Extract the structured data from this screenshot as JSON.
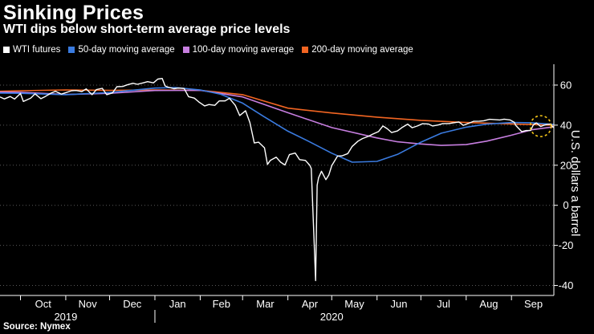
{
  "header": {
    "title": "Sinking Prices",
    "subtitle": "WTI dips below short-term average price levels"
  },
  "footer": {
    "source": "Source: Nymex"
  },
  "colors": {
    "background": "#000000",
    "wti": "#ffffff",
    "ma50": "#3a7be0",
    "ma100": "#c77ee0",
    "ma200": "#f26522",
    "annotation": "#f2c318",
    "grid": "#5a5a5a"
  },
  "chart_data": {
    "type": "line",
    "title": "Sinking Prices",
    "subtitle": "WTI dips below short-term average price levels",
    "ylabel": "U.S. dollars a barrel",
    "ylim": [
      -45,
      68
    ],
    "yticks": [
      60,
      40,
      20,
      0,
      -20,
      -40
    ],
    "ytick_labels": [
      "60",
      "40",
      "20",
      "0",
      "-20",
      "-40"
    ],
    "y_axis_side": "right",
    "grid": "horizontal dotted",
    "legend_position": "top-left",
    "x_range": [
      "2019-09-17",
      "2020-09-30"
    ],
    "month_ticks": [
      {
        "label": "Oct",
        "date": "2019-10-01"
      },
      {
        "label": "Nov",
        "date": "2019-11-01"
      },
      {
        "label": "Dec",
        "date": "2019-12-01"
      },
      {
        "label": "Jan",
        "date": "2020-01-01"
      },
      {
        "label": "Feb",
        "date": "2020-02-01"
      },
      {
        "label": "Mar",
        "date": "2020-03-01"
      },
      {
        "label": "Apr",
        "date": "2020-04-01"
      },
      {
        "label": "May",
        "date": "2020-05-01"
      },
      {
        "label": "Jun",
        "date": "2020-06-01"
      },
      {
        "label": "Jul",
        "date": "2020-07-01"
      },
      {
        "label": "Aug",
        "date": "2020-08-01"
      },
      {
        "label": "Sep",
        "date": "2020-09-01"
      }
    ],
    "year_labels": [
      {
        "label": "2019",
        "date": "2019-11-01"
      },
      {
        "label": "2020",
        "date": "2020-05-01"
      }
    ],
    "series": [
      {
        "name": "WTI futures",
        "color": "#ffffff",
        "points": [
          [
            "2019-09-17",
            54.1
          ],
          [
            "2019-09-20",
            53.1
          ],
          [
            "2019-09-24",
            54.3
          ],
          [
            "2019-09-27",
            53.0
          ],
          [
            "2019-10-01",
            55.8
          ],
          [
            "2019-10-03",
            51.8
          ],
          [
            "2019-10-08",
            53.5
          ],
          [
            "2019-10-11",
            55.6
          ],
          [
            "2019-10-15",
            53.2
          ],
          [
            "2019-10-18",
            54.3
          ],
          [
            "2019-10-22",
            56.0
          ],
          [
            "2019-10-25",
            56.9
          ],
          [
            "2019-10-29",
            55.5
          ],
          [
            "2019-11-01",
            56.2
          ],
          [
            "2019-11-05",
            57.2
          ],
          [
            "2019-11-08",
            57.3
          ],
          [
            "2019-11-12",
            56.8
          ],
          [
            "2019-11-15",
            58.1
          ],
          [
            "2019-11-19",
            55.2
          ],
          [
            "2019-11-22",
            57.8
          ],
          [
            "2019-11-26",
            58.4
          ],
          [
            "2019-11-29",
            55.2
          ],
          [
            "2019-12-03",
            56.1
          ],
          [
            "2019-12-06",
            59.2
          ],
          [
            "2019-12-10",
            59.3
          ],
          [
            "2019-12-13",
            60.1
          ],
          [
            "2019-12-17",
            60.9
          ],
          [
            "2019-12-20",
            60.4
          ],
          [
            "2019-12-24",
            61.1
          ],
          [
            "2019-12-27",
            61.7
          ],
          [
            "2019-12-31",
            61.1
          ],
          [
            "2020-01-03",
            63.0
          ],
          [
            "2020-01-06",
            63.3
          ],
          [
            "2020-01-08",
            59.6
          ],
          [
            "2020-01-10",
            59.0
          ],
          [
            "2020-01-14",
            58.2
          ],
          [
            "2020-01-17",
            58.5
          ],
          [
            "2020-01-21",
            58.3
          ],
          [
            "2020-01-24",
            54.2
          ],
          [
            "2020-01-28",
            53.5
          ],
          [
            "2020-01-31",
            51.6
          ],
          [
            "2020-02-04",
            49.6
          ],
          [
            "2020-02-07",
            50.3
          ],
          [
            "2020-02-11",
            49.9
          ],
          [
            "2020-02-14",
            52.1
          ],
          [
            "2020-02-18",
            52.1
          ],
          [
            "2020-02-21",
            53.4
          ],
          [
            "2020-02-25",
            49.9
          ],
          [
            "2020-02-28",
            44.8
          ],
          [
            "2020-03-03",
            47.2
          ],
          [
            "2020-03-06",
            41.3
          ],
          [
            "2020-03-09",
            31.1
          ],
          [
            "2020-03-12",
            31.5
          ],
          [
            "2020-03-16",
            28.7
          ],
          [
            "2020-03-18",
            20.4
          ],
          [
            "2020-03-20",
            22.4
          ],
          [
            "2020-03-24",
            24.0
          ],
          [
            "2020-03-27",
            21.5
          ],
          [
            "2020-03-30",
            20.1
          ],
          [
            "2020-04-02",
            25.3
          ],
          [
            "2020-04-06",
            26.1
          ],
          [
            "2020-04-09",
            22.8
          ],
          [
            "2020-04-13",
            22.4
          ],
          [
            "2020-04-16",
            19.9
          ],
          [
            "2020-04-17",
            18.3
          ],
          [
            "2020-04-20",
            -37.6
          ],
          [
            "2020-04-21",
            10.0
          ],
          [
            "2020-04-22",
            13.8
          ],
          [
            "2020-04-24",
            17.0
          ],
          [
            "2020-04-27",
            12.8
          ],
          [
            "2020-04-29",
            15.1
          ],
          [
            "2020-05-01",
            19.8
          ],
          [
            "2020-05-05",
            24.6
          ],
          [
            "2020-05-08",
            24.7
          ],
          [
            "2020-05-12",
            25.8
          ],
          [
            "2020-05-15",
            29.4
          ],
          [
            "2020-05-19",
            32.0
          ],
          [
            "2020-05-22",
            33.3
          ],
          [
            "2020-05-26",
            34.4
          ],
          [
            "2020-05-29",
            35.5
          ],
          [
            "2020-06-02",
            36.8
          ],
          [
            "2020-06-05",
            39.6
          ],
          [
            "2020-06-08",
            38.2
          ],
          [
            "2020-06-11",
            36.3
          ],
          [
            "2020-06-15",
            37.1
          ],
          [
            "2020-06-18",
            38.8
          ],
          [
            "2020-06-22",
            40.5
          ],
          [
            "2020-06-25",
            38.7
          ],
          [
            "2020-06-29",
            39.7
          ],
          [
            "2020-07-02",
            40.7
          ],
          [
            "2020-07-06",
            40.6
          ],
          [
            "2020-07-09",
            39.6
          ],
          [
            "2020-07-13",
            40.1
          ],
          [
            "2020-07-16",
            40.8
          ],
          [
            "2020-07-20",
            40.8
          ],
          [
            "2020-07-23",
            41.1
          ],
          [
            "2020-07-27",
            41.6
          ],
          [
            "2020-07-30",
            39.9
          ],
          [
            "2020-08-03",
            41.0
          ],
          [
            "2020-08-06",
            41.9
          ],
          [
            "2020-08-10",
            42.0
          ],
          [
            "2020-08-13",
            42.2
          ],
          [
            "2020-08-17",
            42.9
          ],
          [
            "2020-08-20",
            42.8
          ],
          [
            "2020-08-24",
            42.6
          ],
          [
            "2020-08-27",
            43.0
          ],
          [
            "2020-08-31",
            42.6
          ],
          [
            "2020-09-03",
            41.4
          ],
          [
            "2020-09-04",
            39.8
          ],
          [
            "2020-09-08",
            36.8
          ],
          [
            "2020-09-11",
            37.3
          ],
          [
            "2020-09-14",
            37.3
          ],
          [
            "2020-09-16",
            40.2
          ],
          [
            "2020-09-18",
            41.1
          ],
          [
            "2020-09-21",
            39.3
          ],
          [
            "2020-09-23",
            39.9
          ],
          [
            "2020-09-25",
            40.3
          ],
          [
            "2020-09-28",
            40.6
          ],
          [
            "2020-09-29",
            39.3
          ],
          [
            "2020-09-30",
            38.8
          ]
        ]
      },
      {
        "name": "50-day moving average",
        "color": "#3a7be0",
        "points": [
          [
            "2019-09-17",
            56.0
          ],
          [
            "2019-10-01",
            55.9
          ],
          [
            "2019-11-01",
            55.2
          ],
          [
            "2019-12-01",
            56.3
          ],
          [
            "2020-01-01",
            58.5
          ],
          [
            "2020-01-15",
            58.8
          ],
          [
            "2020-02-01",
            57.6
          ],
          [
            "2020-02-15",
            55.4
          ],
          [
            "2020-03-01",
            51.0
          ],
          [
            "2020-03-15",
            44.5
          ],
          [
            "2020-04-01",
            37.0
          ],
          [
            "2020-04-15",
            32.0
          ],
          [
            "2020-05-01",
            26.0
          ],
          [
            "2020-05-15",
            21.5
          ],
          [
            "2020-06-01",
            21.9
          ],
          [
            "2020-06-15",
            25.4
          ],
          [
            "2020-07-01",
            31.5
          ],
          [
            "2020-07-15",
            36.0
          ],
          [
            "2020-08-01",
            39.0
          ],
          [
            "2020-08-15",
            40.5
          ],
          [
            "2020-09-01",
            41.3
          ],
          [
            "2020-09-15",
            41.2
          ],
          [
            "2020-09-30",
            40.3
          ]
        ]
      },
      {
        "name": "100-day moving average",
        "color": "#c77ee0",
        "points": [
          [
            "2019-09-17",
            56.5
          ],
          [
            "2019-10-01",
            56.4
          ],
          [
            "2019-11-01",
            55.3
          ],
          [
            "2019-12-01",
            55.9
          ],
          [
            "2020-01-01",
            57.3
          ],
          [
            "2020-02-01",
            57.4
          ],
          [
            "2020-03-01",
            54.1
          ],
          [
            "2020-04-01",
            46.2
          ],
          [
            "2020-05-01",
            38.8
          ],
          [
            "2020-06-01",
            33.6
          ],
          [
            "2020-06-15",
            31.7
          ],
          [
            "2020-07-01",
            30.6
          ],
          [
            "2020-07-15",
            29.9
          ],
          [
            "2020-08-01",
            30.3
          ],
          [
            "2020-08-15",
            32.0
          ],
          [
            "2020-09-01",
            35.0
          ],
          [
            "2020-09-15",
            37.7
          ],
          [
            "2020-09-30",
            39.2
          ]
        ]
      },
      {
        "name": "200-day moving average",
        "color": "#f26522",
        "points": [
          [
            "2019-09-17",
            56.9
          ],
          [
            "2019-10-01",
            57.2
          ],
          [
            "2019-11-01",
            57.6
          ],
          [
            "2019-12-01",
            57.4
          ],
          [
            "2020-01-01",
            57.6
          ],
          [
            "2020-02-01",
            57.4
          ],
          [
            "2020-03-01",
            55.2
          ],
          [
            "2020-04-01",
            48.5
          ],
          [
            "2020-05-01",
            46.1
          ],
          [
            "2020-06-01",
            44.0
          ],
          [
            "2020-07-01",
            42.4
          ],
          [
            "2020-08-01",
            41.3
          ],
          [
            "2020-09-01",
            40.6
          ],
          [
            "2020-09-30",
            40.0
          ]
        ]
      }
    ],
    "annotations": [
      {
        "type": "dashed-circle",
        "color": "#f2c318",
        "date": "2020-09-21",
        "y": 39.5
      }
    ]
  }
}
